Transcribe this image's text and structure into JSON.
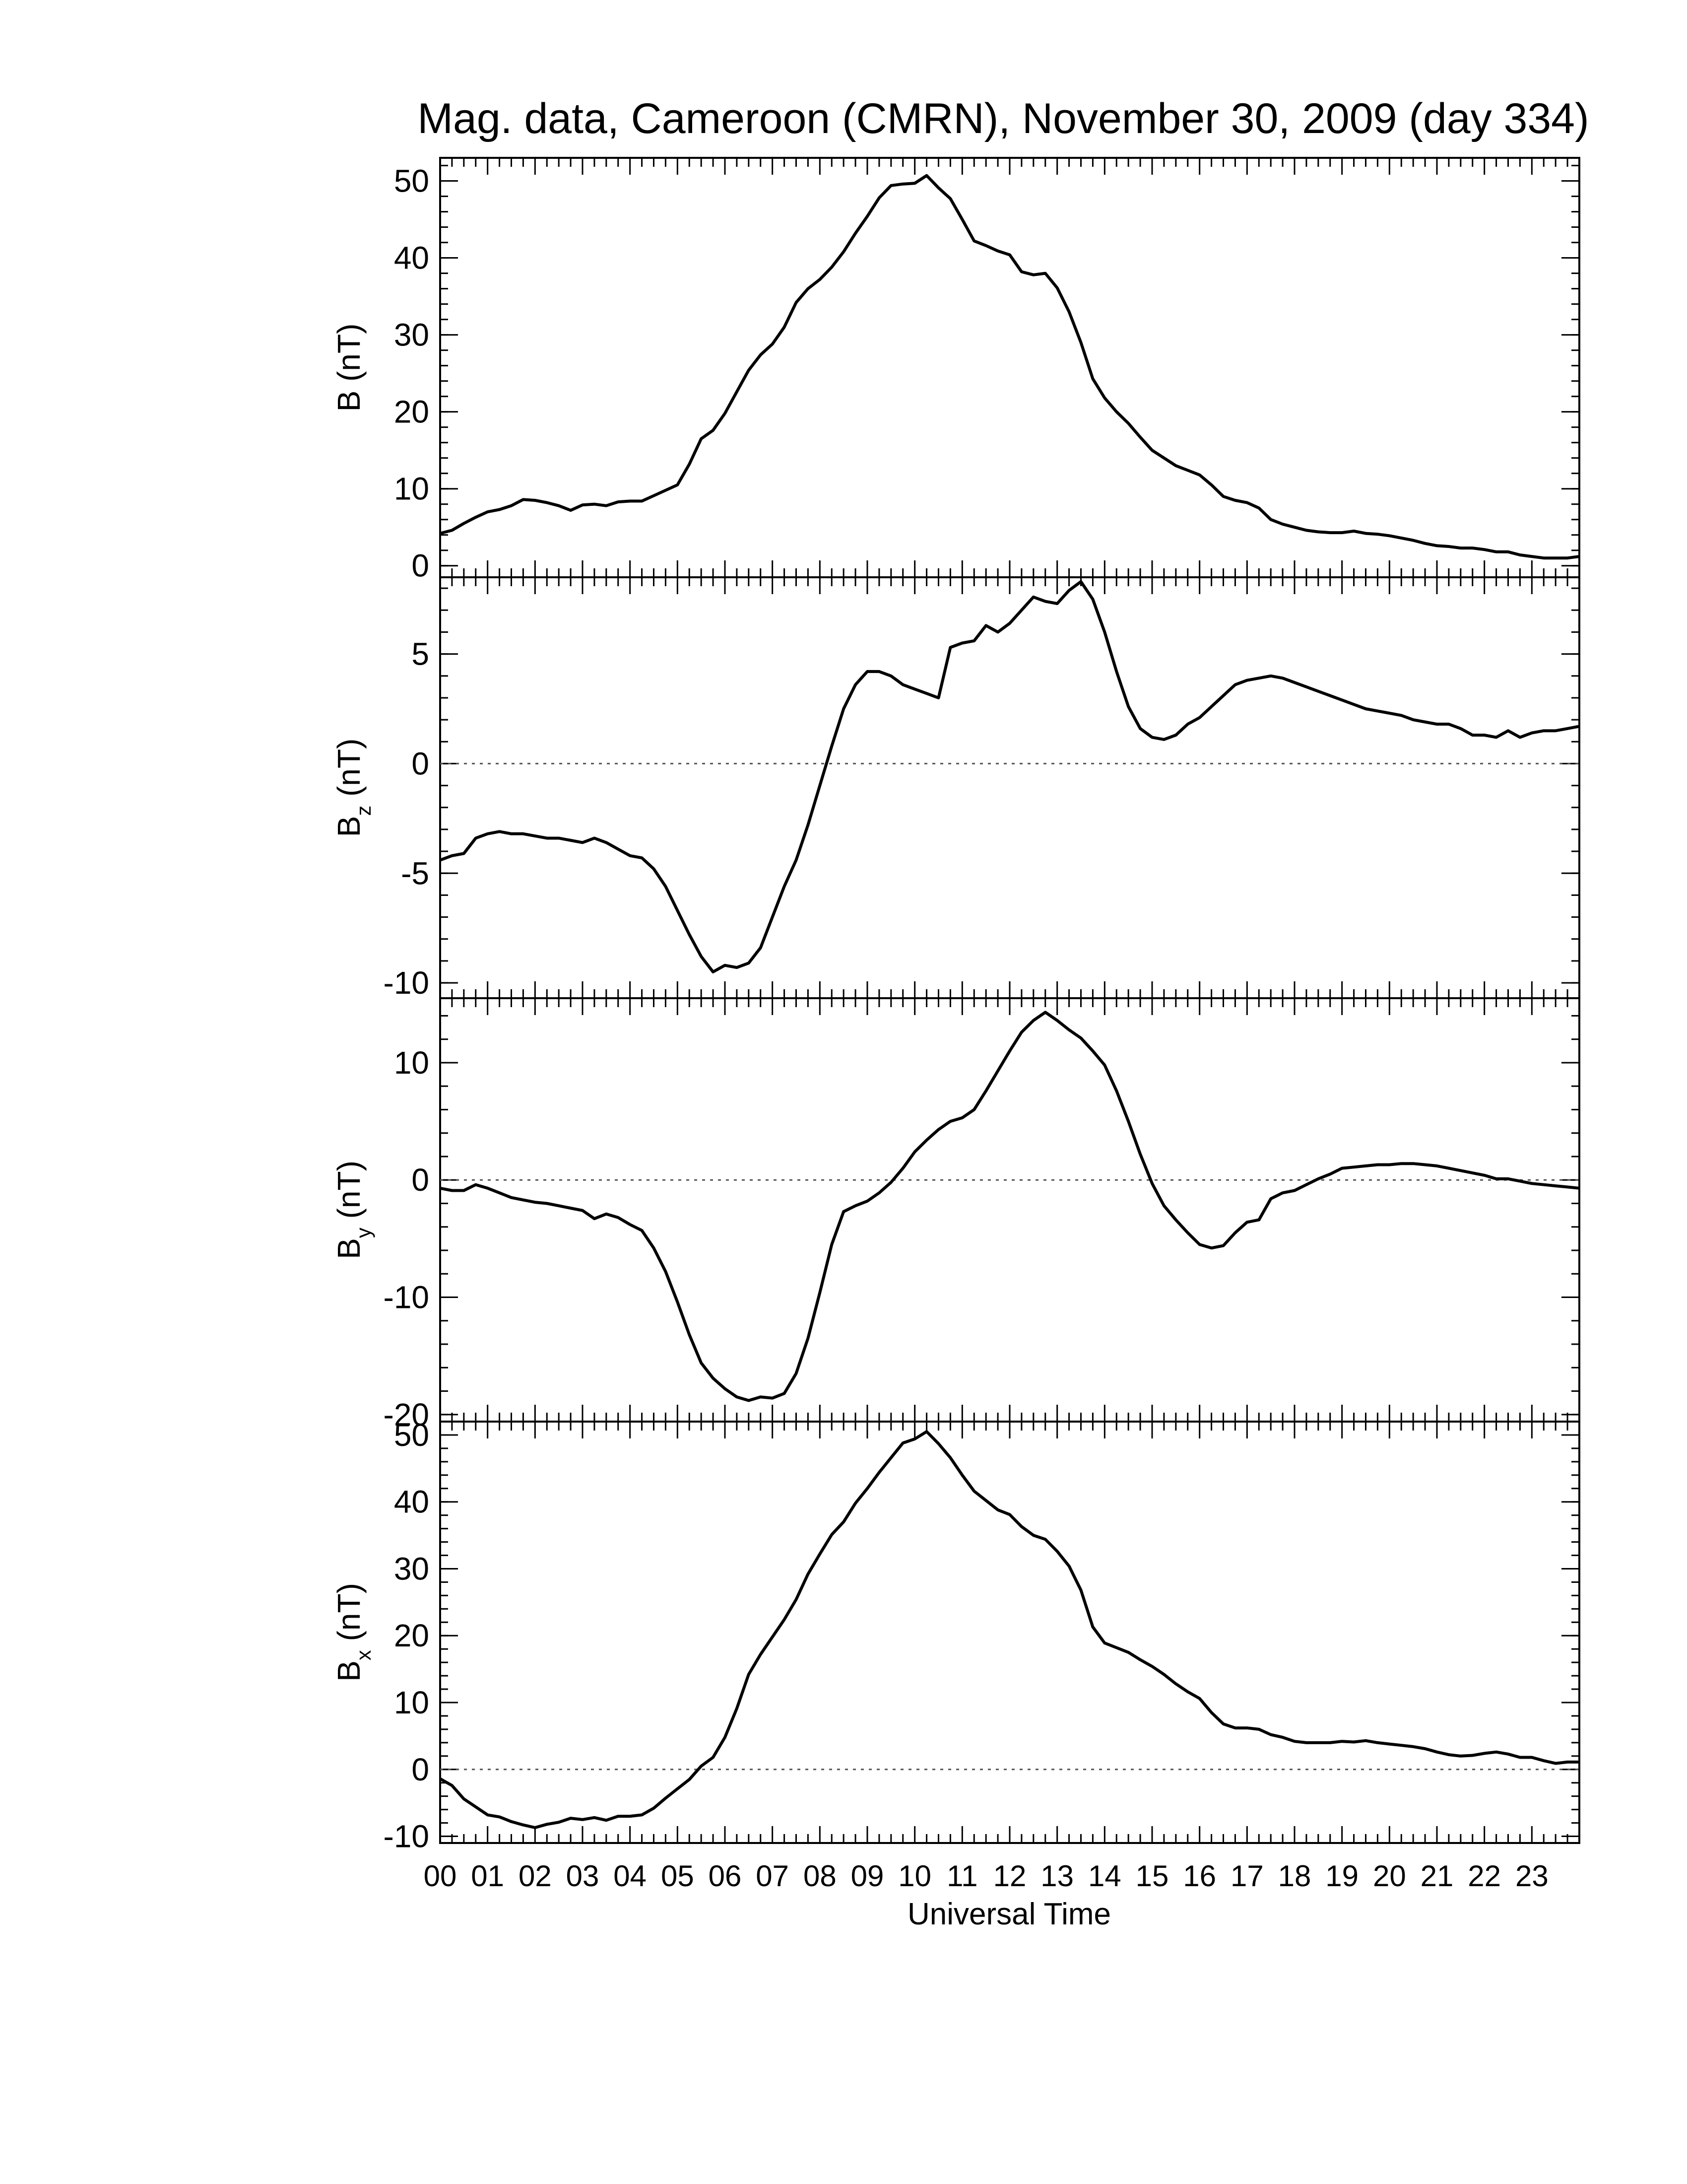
{
  "figure": {
    "title": "Mag. data, Cameroon (CMRN), November 30, 2009 (day 334)",
    "xlabel": "Universal Time",
    "line_color": "#000000",
    "zero_line_color": "#555555"
  },
  "chart_data": [
    {
      "type": "line",
      "panel": "B",
      "ylabel_main": "B",
      "ylabel_sub": "",
      "ylabel_unit": "(nT)",
      "xlim": [
        0,
        24
      ],
      "ylim": [
        -1.5,
        53
      ],
      "yticks": [
        0,
        10,
        20,
        30,
        40,
        50
      ],
      "ytick_labels": [
        "0",
        "10",
        "20",
        "30",
        "40",
        "50"
      ],
      "zero_line": false,
      "x": [
        0.0,
        0.25,
        0.5,
        0.75,
        1.0,
        1.25,
        1.5,
        1.75,
        2.0,
        2.25,
        2.5,
        2.75,
        3.0,
        3.25,
        3.5,
        3.75,
        4.0,
        4.25,
        4.5,
        4.75,
        5.0,
        5.25,
        5.5,
        5.75,
        6.0,
        6.25,
        6.5,
        6.75,
        7.0,
        7.25,
        7.5,
        7.75,
        8.0,
        8.25,
        8.5,
        8.75,
        9.0,
        9.25,
        9.5,
        9.75,
        10.0,
        10.25,
        10.5,
        10.75,
        11.0,
        11.25,
        11.5,
        11.75,
        12.0,
        12.25,
        12.5,
        12.75,
        13.0,
        13.25,
        13.5,
        13.75,
        14.0,
        14.25,
        14.5,
        14.75,
        15.0,
        15.25,
        15.5,
        15.75,
        16.0,
        16.25,
        16.5,
        16.75,
        17.0,
        17.25,
        17.5,
        17.75,
        18.0,
        18.25,
        18.5,
        18.75,
        19.0,
        19.25,
        19.5,
        19.75,
        20.0,
        20.25,
        20.5,
        20.75,
        21.0,
        21.25,
        21.5,
        21.75,
        22.0,
        22.25,
        22.5,
        22.75,
        23.0,
        23.25,
        23.5,
        23.75,
        24.0
      ],
      "y": [
        4.2,
        4.6,
        5.5,
        6.3,
        7.0,
        7.3,
        7.8,
        8.6,
        8.5,
        8.2,
        7.8,
        7.2,
        7.9,
        8.0,
        7.8,
        8.3,
        8.4,
        8.4,
        9.1,
        9.8,
        10.5,
        13.2,
        16.5,
        17.6,
        19.8,
        22.6,
        25.4,
        27.4,
        28.8,
        31.0,
        34.2,
        36.0,
        37.2,
        38.8,
        40.8,
        43.2,
        45.4,
        47.8,
        49.4,
        49.6,
        49.7,
        50.7,
        49.1,
        47.7,
        45.0,
        42.2,
        41.6,
        40.9,
        40.4,
        38.2,
        37.8,
        38.0,
        36.1,
        33.0,
        29.0,
        24.3,
        21.8,
        20.0,
        18.5,
        16.7,
        15.0,
        14.0,
        13.0,
        12.4,
        11.8,
        10.5,
        9.0,
        8.5,
        8.2,
        7.5,
        6.0,
        5.4,
        5.0,
        4.6,
        4.4,
        4.3,
        4.3,
        4.5,
        4.2,
        4.1,
        3.9,
        3.6,
        3.3,
        2.9,
        2.6,
        2.5,
        2.3,
        2.3,
        2.1,
        1.8,
        1.8,
        1.4,
        1.2,
        1.0,
        1.0,
        1.0,
        1.2
      ]
    },
    {
      "type": "line",
      "panel": "Bz",
      "ylabel_main": "B",
      "ylabel_sub": "z",
      "ylabel_unit": "(nT)",
      "xlim": [
        0,
        24
      ],
      "ylim": [
        -10.7,
        8.5
      ],
      "yticks": [
        -10,
        -5,
        0,
        5
      ],
      "ytick_labels": [
        "-10",
        "-5",
        "0",
        "5"
      ],
      "zero_line": true,
      "x": [
        0.0,
        0.25,
        0.5,
        0.75,
        1.0,
        1.25,
        1.5,
        1.75,
        2.0,
        2.25,
        2.5,
        2.75,
        3.0,
        3.25,
        3.5,
        3.75,
        4.0,
        4.25,
        4.5,
        4.75,
        5.0,
        5.25,
        5.5,
        5.75,
        6.0,
        6.25,
        6.5,
        6.75,
        7.0,
        7.25,
        7.5,
        7.75,
        8.0,
        8.25,
        8.5,
        8.75,
        9.0,
        9.25,
        9.5,
        9.75,
        10.0,
        10.25,
        10.5,
        10.75,
        11.0,
        11.25,
        11.5,
        11.75,
        12.0,
        12.25,
        12.5,
        12.75,
        13.0,
        13.25,
        13.5,
        13.75,
        14.0,
        14.25,
        14.5,
        14.75,
        15.0,
        15.25,
        15.5,
        15.75,
        16.0,
        16.25,
        16.5,
        16.75,
        17.0,
        17.25,
        17.5,
        17.75,
        18.0,
        18.25,
        18.5,
        18.75,
        19.0,
        19.25,
        19.5,
        19.75,
        20.0,
        20.25,
        20.5,
        20.75,
        21.0,
        21.25,
        21.5,
        21.75,
        22.0,
        22.25,
        22.5,
        22.75,
        23.0,
        23.25,
        23.5,
        23.75,
        24.0
      ],
      "y": [
        -4.4,
        -4.2,
        -4.1,
        -3.4,
        -3.2,
        -3.1,
        -3.2,
        -3.2,
        -3.3,
        -3.4,
        -3.4,
        -3.5,
        -3.6,
        -3.4,
        -3.6,
        -3.9,
        -4.2,
        -4.3,
        -4.8,
        -5.6,
        -6.7,
        -7.8,
        -8.8,
        -9.5,
        -9.2,
        -9.3,
        -9.1,
        -8.4,
        -7.0,
        -5.6,
        -4.4,
        -2.8,
        -1.0,
        0.8,
        2.5,
        3.6,
        4.2,
        4.2,
        4.0,
        3.6,
        3.4,
        3.2,
        3.0,
        5.3,
        5.5,
        5.6,
        6.3,
        6.0,
        6.4,
        7.0,
        7.6,
        7.4,
        7.3,
        7.9,
        8.3,
        7.5,
        6.0,
        4.2,
        2.6,
        1.6,
        1.2,
        1.1,
        1.3,
        1.8,
        2.1,
        2.6,
        3.1,
        3.6,
        3.8,
        3.9,
        4.0,
        3.9,
        3.7,
        3.5,
        3.3,
        3.1,
        2.9,
        2.7,
        2.5,
        2.4,
        2.3,
        2.2,
        2.0,
        1.9,
        1.8,
        1.8,
        1.6,
        1.3,
        1.3,
        1.2,
        1.5,
        1.2,
        1.4,
        1.5,
        1.5,
        1.6,
        1.7
      ]
    },
    {
      "type": "line",
      "panel": "By",
      "ylabel_main": "B",
      "ylabel_sub": "y",
      "ylabel_unit": "(nT)",
      "xlim": [
        0,
        24
      ],
      "ylim": [
        -20.6,
        15.5
      ],
      "yticks": [
        -20,
        -10,
        0,
        10
      ],
      "ytick_labels": [
        "-20",
        "-10",
        "0",
        "10"
      ],
      "zero_line": true,
      "x": [
        0.0,
        0.25,
        0.5,
        0.75,
        1.0,
        1.25,
        1.5,
        1.75,
        2.0,
        2.25,
        2.5,
        2.75,
        3.0,
        3.25,
        3.5,
        3.75,
        4.0,
        4.25,
        4.5,
        4.75,
        5.0,
        5.25,
        5.5,
        5.75,
        6.0,
        6.25,
        6.5,
        6.75,
        7.0,
        7.25,
        7.5,
        7.75,
        8.0,
        8.25,
        8.5,
        8.75,
        9.0,
        9.25,
        9.5,
        9.75,
        10.0,
        10.25,
        10.5,
        10.75,
        11.0,
        11.25,
        11.5,
        11.75,
        12.0,
        12.25,
        12.5,
        12.75,
        13.0,
        13.25,
        13.5,
        13.75,
        14.0,
        14.25,
        14.5,
        14.75,
        15.0,
        15.25,
        15.5,
        15.75,
        16.0,
        16.25,
        16.5,
        16.75,
        17.0,
        17.25,
        17.5,
        17.75,
        18.0,
        18.25,
        18.5,
        18.75,
        19.0,
        19.25,
        19.5,
        19.75,
        20.0,
        20.25,
        20.5,
        20.75,
        21.0,
        21.25,
        21.5,
        21.75,
        22.0,
        22.25,
        22.5,
        22.75,
        23.0,
        23.25,
        23.5,
        23.75,
        24.0
      ],
      "y": [
        -0.7,
        -0.9,
        -0.9,
        -0.4,
        -0.7,
        -1.1,
        -1.5,
        -1.7,
        -1.9,
        -2.0,
        -2.2,
        -2.4,
        -2.6,
        -3.3,
        -2.9,
        -3.2,
        -3.8,
        -4.3,
        -5.8,
        -7.8,
        -10.4,
        -13.2,
        -15.6,
        -16.9,
        -17.8,
        -18.5,
        -18.8,
        -18.5,
        -18.6,
        -18.2,
        -16.5,
        -13.5,
        -9.6,
        -5.5,
        -2.7,
        -2.2,
        -1.8,
        -1.1,
        -0.2,
        1.0,
        2.4,
        3.4,
        4.3,
        5.0,
        5.3,
        6.0,
        7.6,
        9.3,
        11.0,
        12.6,
        13.6,
        14.3,
        13.6,
        12.8,
        12.1,
        11.0,
        9.8,
        7.6,
        5.0,
        2.2,
        -0.3,
        -2.2,
        -3.4,
        -4.5,
        -5.5,
        -5.8,
        -5.6,
        -4.5,
        -3.6,
        -3.4,
        -1.6,
        -1.1,
        -0.9,
        -0.4,
        0.1,
        0.5,
        1.0,
        1.1,
        1.2,
        1.3,
        1.3,
        1.4,
        1.4,
        1.3,
        1.2,
        1.0,
        0.8,
        0.6,
        0.4,
        0.1,
        0.1,
        -0.1,
        -0.3,
        -0.4,
        -0.5,
        -0.6,
        -0.7
      ]
    },
    {
      "type": "line",
      "panel": "Bx",
      "ylabel_main": "B",
      "ylabel_sub": "x",
      "ylabel_unit": "(nT)",
      "xlim": [
        0,
        24
      ],
      "ylim": [
        -11,
        52
      ],
      "yticks": [
        -10,
        0,
        10,
        20,
        30,
        40,
        50
      ],
      "ytick_labels": [
        "-10",
        "0",
        "10",
        "20",
        "30",
        "40",
        "50"
      ],
      "zero_line": true,
      "x": [
        0.0,
        0.25,
        0.5,
        0.75,
        1.0,
        1.25,
        1.5,
        1.75,
        2.0,
        2.25,
        2.5,
        2.75,
        3.0,
        3.25,
        3.5,
        3.75,
        4.0,
        4.25,
        4.5,
        4.75,
        5.0,
        5.25,
        5.5,
        5.75,
        6.0,
        6.25,
        6.5,
        6.75,
        7.0,
        7.25,
        7.5,
        7.75,
        8.0,
        8.25,
        8.5,
        8.75,
        9.0,
        9.25,
        9.5,
        9.75,
        10.0,
        10.25,
        10.5,
        10.75,
        11.0,
        11.25,
        11.5,
        11.75,
        12.0,
        12.25,
        12.5,
        12.75,
        13.0,
        13.25,
        13.5,
        13.75,
        14.0,
        14.25,
        14.5,
        14.75,
        15.0,
        15.25,
        15.5,
        15.75,
        16.0,
        16.25,
        16.5,
        16.75,
        17.0,
        17.25,
        17.5,
        17.75,
        18.0,
        18.25,
        18.5,
        18.75,
        19.0,
        19.25,
        19.5,
        19.75,
        20.0,
        20.25,
        20.5,
        20.75,
        21.0,
        21.25,
        21.5,
        21.75,
        22.0,
        22.25,
        22.5,
        22.75,
        23.0,
        23.25,
        23.5,
        23.75,
        24.0
      ],
      "y": [
        -1.4,
        -2.4,
        -4.4,
        -5.6,
        -6.8,
        -7.1,
        -7.8,
        -8.3,
        -8.7,
        -8.2,
        -7.9,
        -7.3,
        -7.5,
        -7.2,
        -7.6,
        -7.0,
        -7.0,
        -6.8,
        -5.8,
        -4.3,
        -2.9,
        -1.5,
        0.5,
        1.8,
        4.8,
        9.1,
        14.2,
        17.2,
        19.8,
        22.4,
        25.4,
        29.2,
        32.2,
        35.1,
        37.0,
        39.8,
        42.0,
        44.4,
        46.6,
        48.8,
        49.4,
        50.5,
        48.7,
        46.6,
        44.0,
        41.6,
        40.2,
        38.8,
        38.1,
        36.3,
        35.0,
        34.4,
        32.6,
        30.4,
        26.8,
        21.3,
        18.9,
        18.2,
        17.5,
        16.4,
        15.4,
        14.2,
        12.8,
        11.6,
        10.6,
        8.5,
        6.8,
        6.2,
        6.2,
        6.0,
        5.2,
        4.8,
        4.2,
        4.0,
        4.0,
        4.0,
        4.2,
        4.1,
        4.3,
        4.0,
        3.8,
        3.6,
        3.4,
        3.1,
        2.6,
        2.2,
        2.0,
        2.1,
        2.4,
        2.6,
        2.3,
        1.8,
        1.8,
        1.3,
        0.9,
        1.1,
        1.1
      ]
    }
  ],
  "time_axis": {
    "tick_labels": [
      "00",
      "01",
      "02",
      "03",
      "04",
      "05",
      "06",
      "07",
      "08",
      "09",
      "10",
      "11",
      "12",
      "13",
      "14",
      "15",
      "16",
      "17",
      "18",
      "19",
      "20",
      "21",
      "22",
      "23"
    ]
  }
}
